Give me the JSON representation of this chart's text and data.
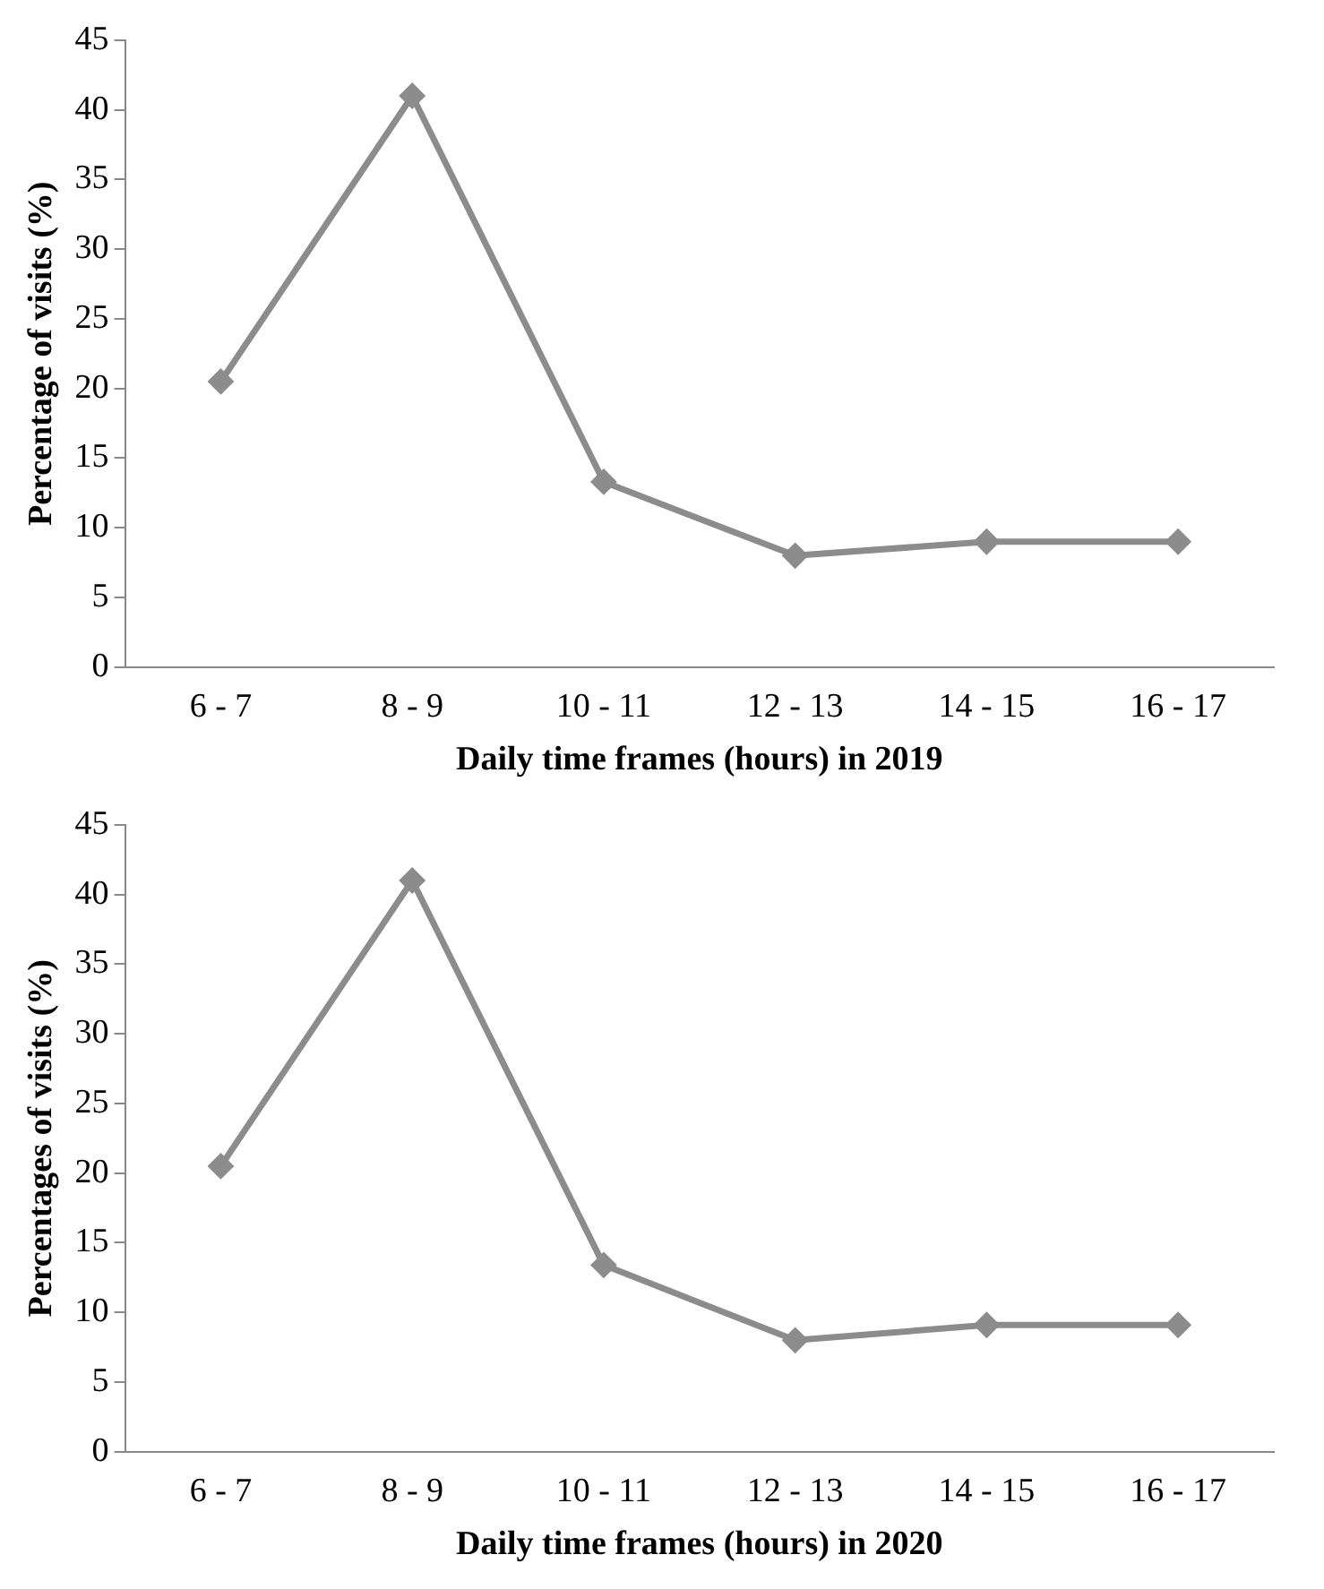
{
  "chart_data": [
    {
      "type": "line",
      "xlabel": "Daily time frames (hours) in 2019",
      "ylabel": "Percentage of visits (%)",
      "categories": [
        "6 - 7",
        "8 - 9",
        "10 - 11",
        "12 - 13",
        "14 - 15",
        "16 - 17"
      ],
      "series": [
        {
          "color": "#8c8c8c",
          "values": [
            20.5,
            41,
            13.3,
            8,
            9,
            9
          ]
        }
      ],
      "ylim": [
        0,
        45
      ],
      "yticks": [
        0,
        5,
        10,
        15,
        20,
        25,
        30,
        35,
        40,
        45
      ],
      "grid": false,
      "legend": false,
      "marker": "diamond",
      "line_style": "solid"
    },
    {
      "type": "line",
      "xlabel": "Daily time frames (hours) in 2020",
      "ylabel": "Percentages of visits (%)",
      "categories": [
        "6 - 7",
        "8 - 9",
        "10 - 11",
        "12 - 13",
        "14 - 15",
        "16 - 17"
      ],
      "series": [
        {
          "color": "#8c8c8c",
          "values": [
            20.5,
            41,
            13.4,
            8,
            9.1,
            9.1
          ]
        }
      ],
      "ylim": [
        0,
        45
      ],
      "yticks": [
        0,
        5,
        10,
        15,
        20,
        25,
        30,
        35,
        40,
        45
      ],
      "grid": false,
      "legend": false,
      "marker": "diamond",
      "line_style": "solid"
    }
  ]
}
